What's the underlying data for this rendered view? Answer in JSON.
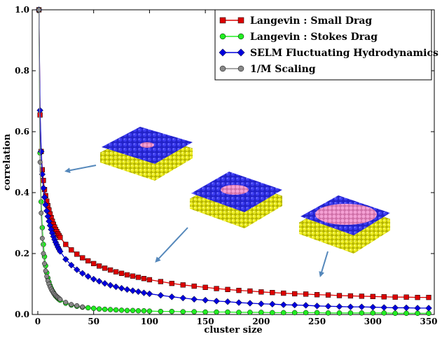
{
  "chart_data": {
    "type": "line",
    "title": "",
    "xlabel": "cluster size",
    "ylabel": "correlation",
    "xlim": [
      -5,
      355
    ],
    "ylim": [
      0,
      1.0
    ],
    "xticks": [
      0,
      50,
      100,
      150,
      200,
      250,
      300,
      350
    ],
    "yticks": [
      0.0,
      0.2,
      0.4,
      0.6,
      0.8,
      1.0
    ],
    "xtick_labels": [
      "0",
      "50",
      "100",
      "150",
      "200",
      "250",
      "300",
      "350"
    ],
    "ytick_labels": [
      "0.0",
      "0.2",
      "0.4",
      "0.6",
      "0.8",
      "1.0"
    ],
    "grid": false,
    "legend_position": "top-right",
    "series": [
      {
        "name": "Langevin : Small Drag",
        "color": "#dd0000",
        "marker": "square",
        "points": [
          [
            1,
            1.0
          ],
          [
            2,
            0.655
          ],
          [
            3,
            0.535
          ],
          [
            4,
            0.475
          ],
          [
            5,
            0.44
          ],
          [
            6,
            0.41
          ],
          [
            7,
            0.39
          ],
          [
            8,
            0.372
          ],
          [
            9,
            0.357
          ],
          [
            10,
            0.343
          ],
          [
            11,
            0.33
          ],
          [
            12,
            0.318
          ],
          [
            13,
            0.306
          ],
          [
            14,
            0.296
          ],
          [
            15,
            0.287
          ],
          [
            16,
            0.279
          ],
          [
            17,
            0.272
          ],
          [
            18,
            0.265
          ],
          [
            19,
            0.259
          ],
          [
            20,
            0.253
          ],
          [
            25,
            0.23
          ],
          [
            30,
            0.212
          ],
          [
            35,
            0.198
          ],
          [
            40,
            0.186
          ],
          [
            45,
            0.176
          ],
          [
            50,
            0.167
          ],
          [
            55,
            0.159
          ],
          [
            60,
            0.152
          ],
          [
            65,
            0.146
          ],
          [
            70,
            0.14
          ],
          [
            75,
            0.135
          ],
          [
            80,
            0.13
          ],
          [
            85,
            0.126
          ],
          [
            90,
            0.122
          ],
          [
            95,
            0.118
          ],
          [
            100,
            0.114
          ],
          [
            110,
            0.108
          ],
          [
            120,
            0.102
          ],
          [
            130,
            0.097
          ],
          [
            140,
            0.093
          ],
          [
            150,
            0.089
          ],
          [
            160,
            0.085
          ],
          [
            170,
            0.082
          ],
          [
            180,
            0.079
          ],
          [
            190,
            0.077
          ],
          [
            200,
            0.074
          ],
          [
            210,
            0.072
          ],
          [
            220,
            0.07
          ],
          [
            230,
            0.068
          ],
          [
            240,
            0.067
          ],
          [
            250,
            0.065
          ],
          [
            260,
            0.064
          ],
          [
            270,
            0.062
          ],
          [
            280,
            0.061
          ],
          [
            290,
            0.06
          ],
          [
            300,
            0.059
          ],
          [
            310,
            0.058
          ],
          [
            320,
            0.057
          ],
          [
            330,
            0.057
          ],
          [
            340,
            0.056
          ],
          [
            350,
            0.056
          ]
        ]
      },
      {
        "name": "Langevin : Stokes Drag",
        "color": "#22ee22",
        "marker": "circle",
        "points": [
          [
            1,
            1.0
          ],
          [
            2,
            0.53
          ],
          [
            3,
            0.37
          ],
          [
            4,
            0.285
          ],
          [
            5,
            0.23
          ],
          [
            6,
            0.19
          ],
          [
            7,
            0.16
          ],
          [
            8,
            0.137
          ],
          [
            9,
            0.12
          ],
          [
            10,
            0.106
          ],
          [
            11,
            0.095
          ],
          [
            12,
            0.086
          ],
          [
            13,
            0.078
          ],
          [
            14,
            0.072
          ],
          [
            15,
            0.066
          ],
          [
            16,
            0.061
          ],
          [
            17,
            0.057
          ],
          [
            18,
            0.053
          ],
          [
            19,
            0.05
          ],
          [
            20,
            0.047
          ],
          [
            25,
            0.037
          ],
          [
            30,
            0.031
          ],
          [
            35,
            0.027
          ],
          [
            40,
            0.024
          ],
          [
            45,
            0.022
          ],
          [
            50,
            0.02
          ],
          [
            55,
            0.018
          ],
          [
            60,
            0.017
          ],
          [
            65,
            0.016
          ],
          [
            70,
            0.015
          ],
          [
            75,
            0.014
          ],
          [
            80,
            0.013
          ],
          [
            85,
            0.013
          ],
          [
            90,
            0.012
          ],
          [
            95,
            0.012
          ],
          [
            100,
            0.011
          ],
          [
            110,
            0.01
          ],
          [
            120,
            0.01
          ],
          [
            130,
            0.009
          ],
          [
            140,
            0.009
          ],
          [
            150,
            0.008
          ],
          [
            160,
            0.008
          ],
          [
            170,
            0.008
          ],
          [
            180,
            0.007
          ],
          [
            190,
            0.007
          ],
          [
            200,
            0.007
          ],
          [
            210,
            0.006
          ],
          [
            220,
            0.006
          ],
          [
            230,
            0.006
          ],
          [
            240,
            0.006
          ],
          [
            250,
            0.006
          ],
          [
            260,
            0.005
          ],
          [
            270,
            0.005
          ],
          [
            280,
            0.005
          ],
          [
            290,
            0.005
          ],
          [
            300,
            0.005
          ],
          [
            310,
            0.005
          ],
          [
            320,
            0.004
          ],
          [
            330,
            0.004
          ],
          [
            340,
            0.004
          ],
          [
            350,
            0.004
          ]
        ]
      },
      {
        "name": "SELM Fluctuating Hydrodynamics",
        "color": "#0000dd",
        "marker": "diamond",
        "points": [
          [
            1,
            1.0
          ],
          [
            2,
            0.67
          ],
          [
            3,
            0.535
          ],
          [
            4,
            0.46
          ],
          [
            5,
            0.415
          ],
          [
            6,
            0.385
          ],
          [
            7,
            0.36
          ],
          [
            8,
            0.34
          ],
          [
            9,
            0.322
          ],
          [
            10,
            0.306
          ],
          [
            11,
            0.292
          ],
          [
            12,
            0.279
          ],
          [
            13,
            0.267
          ],
          [
            14,
            0.256
          ],
          [
            15,
            0.246
          ],
          [
            16,
            0.237
          ],
          [
            17,
            0.229
          ],
          [
            18,
            0.221
          ],
          [
            19,
            0.214
          ],
          [
            20,
            0.207
          ],
          [
            25,
            0.181
          ],
          [
            30,
            0.162
          ],
          [
            35,
            0.147
          ],
          [
            40,
            0.135
          ],
          [
            45,
            0.125
          ],
          [
            50,
            0.116
          ],
          [
            55,
            0.109
          ],
          [
            60,
            0.102
          ],
          [
            65,
            0.096
          ],
          [
            70,
            0.091
          ],
          [
            75,
            0.086
          ],
          [
            80,
            0.082
          ],
          [
            85,
            0.078
          ],
          [
            90,
            0.075
          ],
          [
            95,
            0.071
          ],
          [
            100,
            0.068
          ],
          [
            110,
            0.063
          ],
          [
            120,
            0.058
          ],
          [
            130,
            0.054
          ],
          [
            140,
            0.05
          ],
          [
            150,
            0.047
          ],
          [
            160,
            0.044
          ],
          [
            170,
            0.042
          ],
          [
            180,
            0.039
          ],
          [
            190,
            0.037
          ],
          [
            200,
            0.035
          ],
          [
            210,
            0.034
          ],
          [
            220,
            0.032
          ],
          [
            230,
            0.031
          ],
          [
            240,
            0.03
          ],
          [
            250,
            0.028
          ],
          [
            260,
            0.027
          ],
          [
            270,
            0.026
          ],
          [
            280,
            0.025
          ],
          [
            290,
            0.025
          ],
          [
            300,
            0.024
          ],
          [
            310,
            0.023
          ],
          [
            320,
            0.022
          ],
          [
            330,
            0.022
          ],
          [
            340,
            0.021
          ],
          [
            350,
            0.021
          ]
        ]
      },
      {
        "name": "1/M Scaling",
        "color": "#888888",
        "marker": "circle",
        "points": [
          [
            1,
            1.0
          ],
          [
            2,
            0.5
          ],
          [
            3,
            0.333
          ],
          [
            4,
            0.25
          ],
          [
            5,
            0.2
          ],
          [
            6,
            0.167
          ],
          [
            7,
            0.143
          ],
          [
            8,
            0.125
          ],
          [
            9,
            0.111
          ],
          [
            10,
            0.1
          ],
          [
            11,
            0.091
          ],
          [
            12,
            0.083
          ],
          [
            13,
            0.077
          ],
          [
            14,
            0.071
          ],
          [
            15,
            0.067
          ],
          [
            16,
            0.063
          ],
          [
            17,
            0.059
          ],
          [
            18,
            0.056
          ],
          [
            19,
            0.053
          ],
          [
            20,
            0.05
          ],
          [
            25,
            0.04
          ],
          [
            30,
            0.033
          ],
          [
            35,
            0.029
          ],
          [
            40,
            0.025
          ]
        ]
      }
    ]
  },
  "insets": [
    {
      "name": "small-cluster-membrane",
      "cluster": "small"
    },
    {
      "name": "medium-cluster-membrane",
      "cluster": "medium"
    },
    {
      "name": "large-cluster-membrane",
      "cluster": "large"
    }
  ],
  "colors": {
    "membrane_top": "#2a2ad8",
    "membrane_bottom": "#e0e020",
    "cluster": "#f090c8",
    "arrow": "#5588bb"
  }
}
